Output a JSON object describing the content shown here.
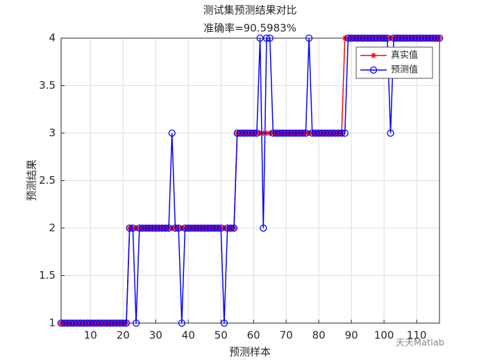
{
  "chart_data": {
    "type": "line",
    "title": "测试集预测结果对比",
    "subtitle": "准确率=90.5983%",
    "x_label": "预测样本",
    "y_label": "预测结果",
    "x": [
      1,
      2,
      3,
      4,
      5,
      6,
      7,
      8,
      9,
      10,
      11,
      12,
      13,
      14,
      15,
      16,
      17,
      18,
      19,
      20,
      21,
      22,
      23,
      24,
      25,
      26,
      27,
      28,
      29,
      30,
      31,
      32,
      33,
      34,
      35,
      36,
      37,
      38,
      39,
      40,
      41,
      42,
      43,
      44,
      45,
      46,
      47,
      48,
      49,
      50,
      51,
      52,
      53,
      54,
      55,
      56,
      57,
      58,
      59,
      60,
      61,
      62,
      63,
      64,
      65,
      66,
      67,
      68,
      69,
      70,
      71,
      72,
      73,
      74,
      75,
      76,
      77,
      78,
      79,
      80,
      81,
      82,
      83,
      84,
      85,
      86,
      87,
      88,
      89,
      90,
      91,
      92,
      93,
      94,
      95,
      96,
      97,
      98,
      99,
      100,
      101,
      102,
      103,
      104,
      105,
      106,
      107,
      108,
      109,
      110,
      111,
      112,
      113,
      114,
      115,
      116,
      117
    ],
    "series": [
      {
        "name": "真实值",
        "color": "#ff0000",
        "marker": "star",
        "values": [
          1,
          1,
          1,
          1,
          1,
          1,
          1,
          1,
          1,
          1,
          1,
          1,
          1,
          1,
          1,
          1,
          1,
          1,
          1,
          1,
          1,
          2,
          2,
          2,
          2,
          2,
          2,
          2,
          2,
          2,
          2,
          2,
          2,
          2,
          2,
          2,
          2,
          2,
          2,
          2,
          2,
          2,
          2,
          2,
          2,
          2,
          2,
          2,
          2,
          2,
          2,
          2,
          2,
          2,
          3,
          3,
          3,
          3,
          3,
          3,
          3,
          3,
          3,
          3,
          3,
          3,
          3,
          3,
          3,
          3,
          3,
          3,
          3,
          3,
          3,
          3,
          3,
          3,
          3,
          3,
          3,
          3,
          3,
          3,
          3,
          3,
          3,
          4,
          4,
          4,
          4,
          4,
          4,
          4,
          4,
          4,
          4,
          4,
          4,
          4,
          4,
          4,
          4,
          4,
          4,
          4,
          4,
          4,
          4,
          4,
          4,
          4,
          4,
          4,
          4,
          4,
          4
        ]
      },
      {
        "name": "预测值",
        "color": "#0000ff",
        "marker": "circle",
        "values": [
          1,
          1,
          1,
          1,
          1,
          1,
          1,
          1,
          1,
          1,
          1,
          1,
          1,
          1,
          1,
          1,
          1,
          1,
          1,
          1,
          1,
          2,
          2,
          1,
          2,
          2,
          2,
          2,
          2,
          2,
          2,
          2,
          2,
          2,
          3,
          2,
          2,
          1,
          2,
          2,
          2,
          2,
          2,
          2,
          2,
          2,
          2,
          2,
          2,
          2,
          1,
          2,
          2,
          2,
          3,
          3,
          3,
          3,
          3,
          3,
          3,
          4,
          2,
          4,
          4,
          3,
          3,
          3,
          3,
          3,
          3,
          3,
          3,
          3,
          3,
          3,
          4,
          3,
          3,
          3,
          3,
          3,
          3,
          3,
          3,
          3,
          3,
          3,
          4,
          4,
          4,
          4,
          4,
          4,
          4,
          4,
          4,
          4,
          4,
          4,
          4,
          3,
          4,
          4,
          4,
          4,
          4,
          4,
          4,
          4,
          4,
          4,
          4,
          4,
          4,
          4,
          4
        ]
      }
    ],
    "xlim": [
      1,
      117
    ],
    "xticks": [
      10,
      20,
      30,
      40,
      50,
      60,
      70,
      80,
      90,
      100,
      110
    ],
    "ylim": [
      1,
      4
    ],
    "yticks": [
      1,
      1.5,
      2,
      2.5,
      3,
      3.5,
      4
    ],
    "grid": true,
    "legend": "upper right",
    "watermark": "天天Matlab"
  }
}
